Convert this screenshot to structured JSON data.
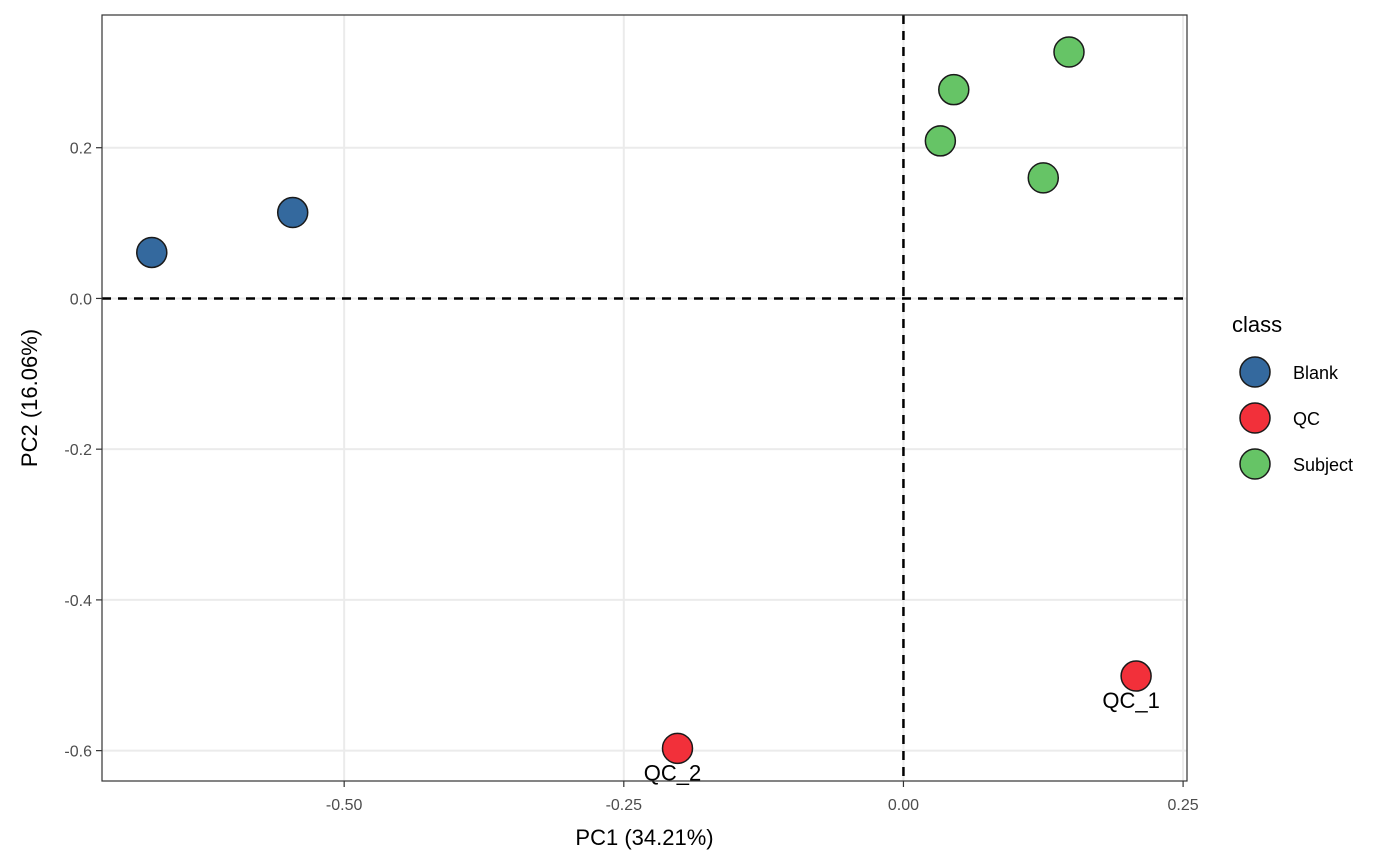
{
  "chart_data": {
    "type": "scatter",
    "xlabel": "PC1 (34.21%)",
    "ylabel": "PC2 (16.06%)",
    "xlim": [
      -0.7165,
      0.2535
    ],
    "ylim": [
      -0.6403,
      0.3761
    ],
    "x_ticks": [
      {
        "value": -0.5,
        "label": "-0.50"
      },
      {
        "value": -0.25,
        "label": "-0.25"
      },
      {
        "value": 0.0,
        "label": "0.00"
      },
      {
        "value": 0.25,
        "label": "0.25"
      }
    ],
    "y_ticks": [
      {
        "value": 0.2,
        "label": "0.2"
      },
      {
        "value": 0.0,
        "label": "0.0"
      },
      {
        "value": -0.2,
        "label": "-0.2"
      },
      {
        "value": -0.4,
        "label": "-0.4"
      },
      {
        "value": -0.6,
        "label": "-0.6"
      }
    ],
    "grid": true,
    "reference_lines": {
      "x": 0,
      "y": 0,
      "style": "dashed"
    },
    "legend": {
      "title": "class",
      "placement": "right",
      "entries": [
        {
          "name": "Blank",
          "color": "#34699E"
        },
        {
          "name": "QC",
          "color": "#F2303A"
        },
        {
          "name": "Subject",
          "color": "#66C466"
        }
      ]
    },
    "series": [
      {
        "name": "Blank",
        "color": "#34699E",
        "points": [
          {
            "x": -0.672,
            "y": 0.061,
            "label": ""
          },
          {
            "x": -0.546,
            "y": 0.114,
            "label": ""
          }
        ]
      },
      {
        "name": "QC",
        "color": "#F2303A",
        "points": [
          {
            "x": 0.208,
            "y": -0.501,
            "label": "QC_1"
          },
          {
            "x": -0.202,
            "y": -0.597,
            "label": "QC_2"
          }
        ]
      },
      {
        "name": "Subject",
        "color": "#66C466",
        "points": [
          {
            "x": 0.148,
            "y": 0.327,
            "label": ""
          },
          {
            "x": 0.045,
            "y": 0.277,
            "label": ""
          },
          {
            "x": 0.033,
            "y": 0.209,
            "label": ""
          },
          {
            "x": 0.125,
            "y": 0.16,
            "label": ""
          }
        ]
      }
    ]
  }
}
